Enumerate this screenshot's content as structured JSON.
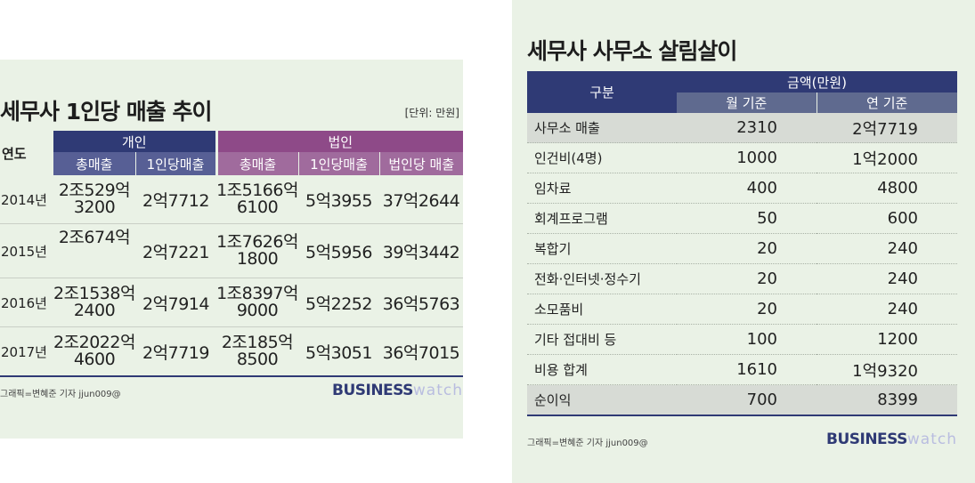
{
  "colors": {
    "individual": "#2f3a75",
    "individual_sub": "#575f95",
    "corporate": "#8e4a88",
    "corporate_sub": "#a06b9d",
    "cost_header": "#2f3a75",
    "cost_sub": "#5f6a8f",
    "panel_bg": "#eaf2e6"
  },
  "left": {
    "title": "세무사 1인당 매출 추이",
    "unit": "[단위: 만원]",
    "header": {
      "year": "연도",
      "individual": "개인",
      "corporate": "법인"
    },
    "subheaders": [
      "총매출",
      "1인당매출",
      "총매출",
      "1인당매출",
      "법인당 매출"
    ],
    "rows": [
      {
        "year": "2014년",
        "ind_total_1": "2조529억",
        "ind_total_2": "3200",
        "ind_per": "2억7712",
        "corp_total_1": "1조5166억",
        "corp_total_2": "6100",
        "corp_per": "5억3955",
        "corp_each": "37억2644"
      },
      {
        "year": "2015년",
        "ind_total_1": "2조674억",
        "ind_total_2": "",
        "ind_per": "2억7221",
        "corp_total_1": "1조7626억",
        "corp_total_2": "1800",
        "corp_per": "5억5956",
        "corp_each": "39억3442"
      },
      {
        "year": "2016년",
        "ind_total_1": "2조1538억",
        "ind_total_2": "2400",
        "ind_per": "2억7914",
        "corp_total_1": "1조8397억",
        "corp_total_2": "9000",
        "corp_per": "5억2252",
        "corp_each": "36억5763"
      },
      {
        "year": "2017년",
        "ind_total_1": "2조2022억",
        "ind_total_2": "4600",
        "ind_per": "2억7719",
        "corp_total_1": "2조185억",
        "corp_total_2": "8500",
        "corp_per": "5억3051",
        "corp_each": "36억7015"
      }
    ],
    "credit": "그래픽=변혜준 기자 jjun009@",
    "logo_bold": "BUSINESS",
    "logo_light": "watch"
  },
  "right": {
    "title": "세무사 사무소 살림살이",
    "header": {
      "category": "구분",
      "amount": "금액(만원)",
      "monthly": "월 기준",
      "yearly": "연 기준"
    },
    "rows": [
      {
        "label": "사무소 매출",
        "monthly": "2310",
        "yearly": "2억7719",
        "shade": true
      },
      {
        "label": "인건비(4명)",
        "monthly": "1000",
        "yearly": "1억2000",
        "shade": false
      },
      {
        "label": "임차료",
        "monthly": "400",
        "yearly": "4800",
        "shade": false
      },
      {
        "label": "회계프로그램",
        "monthly": "50",
        "yearly": "600",
        "shade": false
      },
      {
        "label": "복합기",
        "monthly": "20",
        "yearly": "240",
        "shade": false
      },
      {
        "label": "전화·인터넷·정수기",
        "monthly": "20",
        "yearly": "240",
        "shade": false
      },
      {
        "label": "소모품비",
        "monthly": "20",
        "yearly": "240",
        "shade": false
      },
      {
        "label": "기타 접대비 등",
        "monthly": "100",
        "yearly": "1200",
        "shade": false
      },
      {
        "label": "비용 합계",
        "monthly": "1610",
        "yearly": "1억9320",
        "shade": false
      },
      {
        "label": "순이익",
        "monthly": "700",
        "yearly": "8399",
        "shade": true
      }
    ],
    "credit": "그래픽=변혜준 기자 jjun009@",
    "logo_bold": "BUSINESS",
    "logo_light": "watch"
  },
  "chart_data": [
    {
      "type": "table",
      "title": "세무사 1인당 매출 추이",
      "unit": "[단위: 만원]",
      "columns": [
        "연도",
        "개인 총매출",
        "개인 1인당매출",
        "법인 총매출",
        "법인 1인당매출",
        "법인당 매출"
      ],
      "rows": [
        [
          "2014년",
          "2조529억3200",
          "2억7712",
          "1조5166억6100",
          "5억3955",
          "37억2644"
        ],
        [
          "2015년",
          "2조674억",
          "2억7221",
          "1조7626억1800",
          "5억5956",
          "39억3442"
        ],
        [
          "2016년",
          "2조1538억2400",
          "2억7914",
          "1조8397억9000",
          "5억2252",
          "36억5763"
        ],
        [
          "2017년",
          "2조2022억4600",
          "2억7719",
          "2조185억8500",
          "5억3051",
          "36억7015"
        ]
      ]
    },
    {
      "type": "table",
      "title": "세무사 사무소 살림살이",
      "columns": [
        "구분",
        "월 기준",
        "연 기준"
      ],
      "rows": [
        [
          "사무소 매출",
          "2310",
          "2억7719"
        ],
        [
          "인건비(4명)",
          "1000",
          "1억2000"
        ],
        [
          "임차료",
          "400",
          "4800"
        ],
        [
          "회계프로그램",
          "50",
          "600"
        ],
        [
          "복합기",
          "20",
          "240"
        ],
        [
          "전화·인터넷·정수기",
          "20",
          "240"
        ],
        [
          "소모품비",
          "20",
          "240"
        ],
        [
          "기타 접대비 등",
          "100",
          "1200"
        ],
        [
          "비용 합계",
          "1610",
          "1억9320"
        ],
        [
          "순이익",
          "700",
          "8399"
        ]
      ]
    }
  ]
}
